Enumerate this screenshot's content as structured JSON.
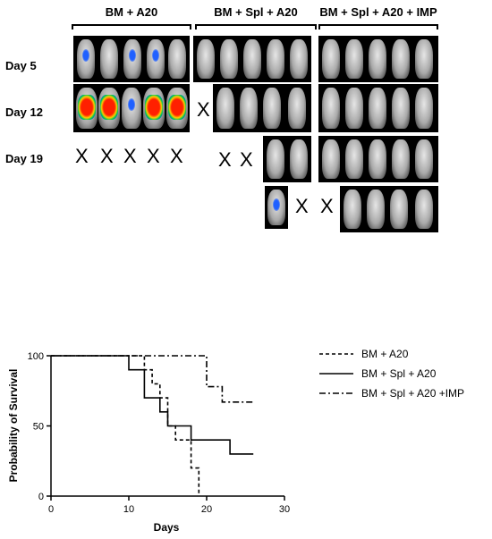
{
  "figure": {
    "group_labels": [
      "BM + A20",
      "BM + Spl + A20",
      "BM + Spl + A20 + IMP"
    ],
    "day_labels": [
      "Day 5",
      "Day 12",
      "Day 19"
    ],
    "x_marker": "X"
  },
  "chart_data": {
    "type": "line",
    "title": "",
    "xlabel": "Days",
    "ylabel": "Probability of Survival",
    "xlim": [
      0,
      30
    ],
    "ylim": [
      0,
      100
    ],
    "xticks": [
      "0",
      "10",
      "20",
      "30"
    ],
    "yticks": [
      "0",
      "50",
      "100"
    ],
    "legend_position": "right",
    "series": [
      {
        "name": "BM + A20",
        "style": "dashed",
        "x": [
          0,
          12,
          13,
          14,
          15,
          16,
          18,
          19
        ],
        "y": [
          100,
          90,
          80,
          70,
          50,
          40,
          20,
          0
        ]
      },
      {
        "name": "BM + Spl + A20",
        "style": "solid",
        "x": [
          0,
          10,
          11,
          12,
          14,
          15,
          16,
          18,
          23,
          26
        ],
        "y": [
          100,
          90,
          90,
          70,
          60,
          50,
          50,
          40,
          30,
          30
        ]
      },
      {
        "name": "BM + Spl + A20 +IMP",
        "style": "dashdot",
        "x": [
          0,
          12,
          20,
          22,
          26
        ],
        "y": [
          100,
          100,
          78,
          67,
          67
        ]
      }
    ]
  }
}
